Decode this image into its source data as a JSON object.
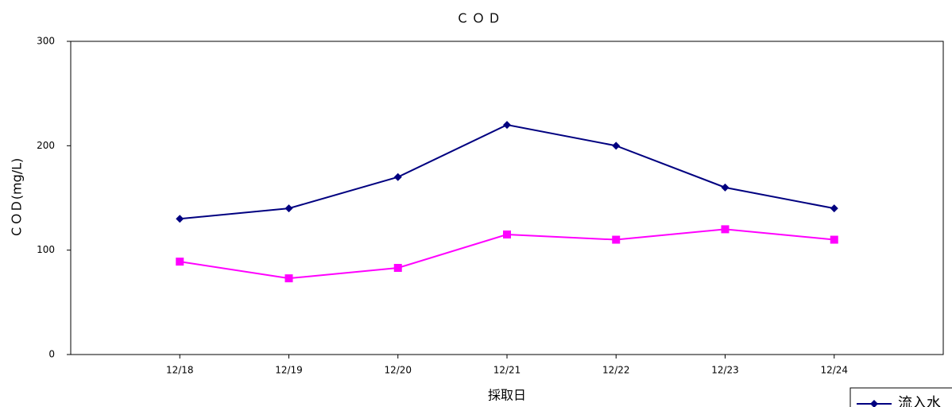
{
  "chart_data": {
    "type": "line",
    "title": "ＣＯＤ",
    "y_label": "ＣＯＤ(mg/L)",
    "x_label": "採取日",
    "categories": [
      "12/18",
      "12/19",
      "12/20",
      "12/21",
      "12/22",
      "12/23",
      "12/24"
    ],
    "series": [
      {
        "name": "流入水",
        "color": "#000080",
        "marker": "diamond",
        "values": [
          130,
          140,
          170,
          220,
          200,
          160,
          140
        ]
      },
      {
        "color": "#ff00ff",
        "marker": "square",
        "values": [
          89,
          73,
          83,
          115,
          110,
          120,
          110
        ]
      }
    ],
    "ylim": [
      0,
      300
    ],
    "yticks": [
      0,
      100,
      200,
      300
    ],
    "grid": false,
    "legend": "lower right"
  }
}
